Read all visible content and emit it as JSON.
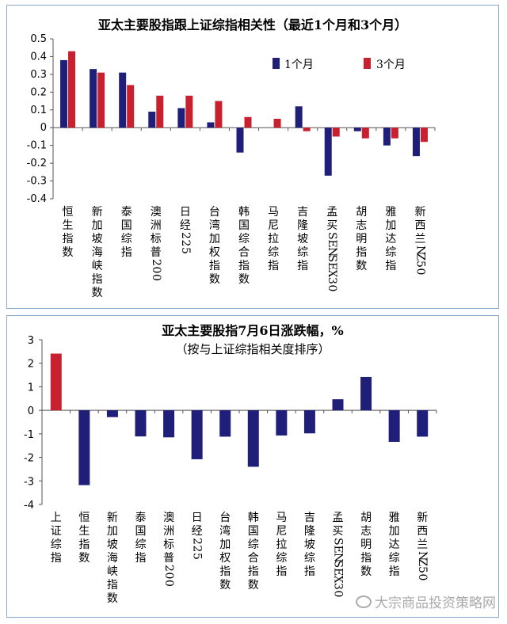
{
  "colors": {
    "series1": "#1f1f7a",
    "series2": "#c8202e",
    "axis": "#555555"
  },
  "watermark": "大宗商品投资策略网",
  "chart_data": [
    {
      "type": "bar",
      "title": "亚太主要股指跟上证综指相关性（最近1个月和3个月）",
      "categories": [
        "恒生指数",
        "新加坡海峡指数",
        "泰国综指",
        "澳洲标普200",
        "日经225",
        "台湾加权指数",
        "韩国综合指数",
        "马尼拉综指",
        "吉隆坡综指",
        "孟买SENSEX30",
        "胡志明指数",
        "雅加达综指",
        "新西兰NZ50"
      ],
      "series": [
        {
          "name": "1个月",
          "values": [
            0.38,
            0.33,
            0.31,
            0.09,
            0.11,
            0.03,
            -0.14,
            0.0,
            0.12,
            -0.27,
            -0.02,
            -0.1,
            -0.16
          ]
        },
        {
          "name": "3个月",
          "values": [
            0.43,
            0.31,
            0.24,
            0.18,
            0.18,
            0.15,
            0.06,
            0.05,
            -0.02,
            -0.05,
            -0.06,
            -0.06,
            -0.08
          ]
        }
      ],
      "ylim": [
        -0.4,
        0.5
      ],
      "yticks": [
        "0.5",
        "0.4",
        "0.3",
        "0.2",
        "0.1",
        "0",
        "-0.1",
        "-0.2",
        "-0.3",
        "-0.4"
      ],
      "legend": "top-right"
    },
    {
      "type": "bar",
      "title": "亚太主要股指7月6日涨跌幅，%",
      "subtitle": "（按与上证综指相关度排序）",
      "categories": [
        "上证综指",
        "恒生指数",
        "新加坡海峡指数",
        "泰国综指",
        "澳洲标普200",
        "日经225",
        "台湾加权指数",
        "韩国综合指数",
        "马尼拉综指",
        "吉隆坡综指",
        "孟买SENSEX30",
        "胡志明指数",
        "雅加达综指",
        "新西兰NZ50"
      ],
      "values": [
        2.41,
        -3.18,
        -0.29,
        -1.11,
        -1.15,
        -2.08,
        -1.12,
        -2.4,
        -1.07,
        -0.98,
        0.47,
        1.42,
        -1.34,
        -1.12
      ],
      "highlight_index": 0,
      "ylim": [
        -4,
        3
      ],
      "yticks": [
        "3",
        "2",
        "1",
        "0",
        "-1",
        "-2",
        "-3",
        "-4"
      ]
    }
  ]
}
